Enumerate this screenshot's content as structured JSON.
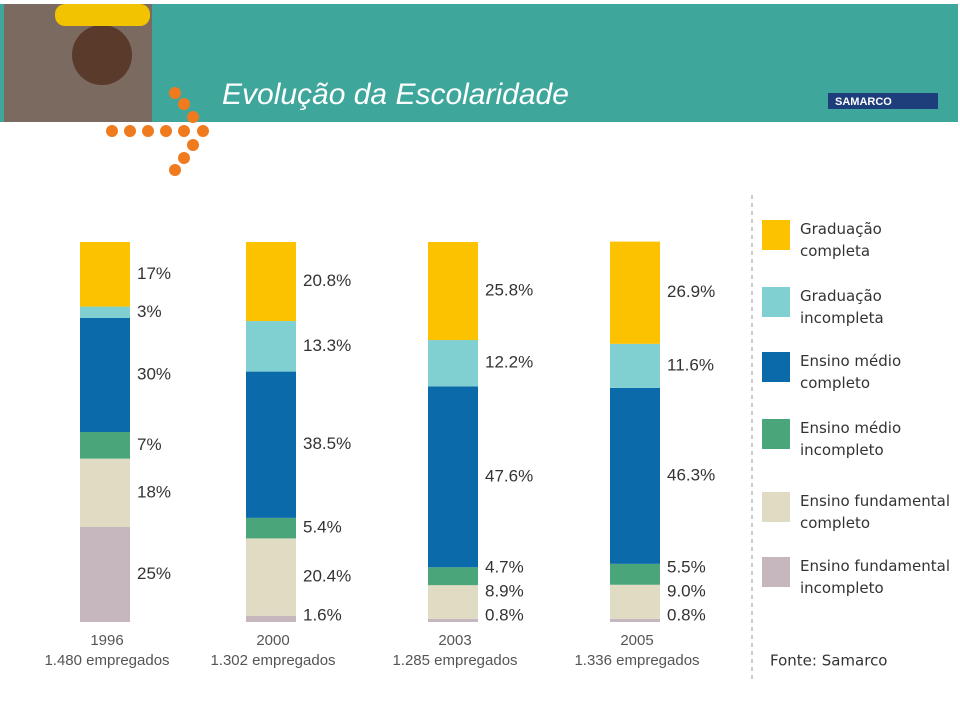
{
  "header": {
    "logo": "SAMARCO"
  },
  "chart_data": {
    "type": "stacked_bar",
    "title": "Evolução da Escolaridade",
    "source": "Fonte: Samarco",
    "categories": [
      "1996",
      "2000",
      "2003",
      "2005"
    ],
    "category_notes": [
      "1.480 empregados",
      "1.302 empregados",
      "1.285 empregados",
      "1.336 empregados"
    ],
    "series": [
      {
        "name": "Graduação completa",
        "color": "#fcc200",
        "values": [
          17,
          20.8,
          25.8,
          26.9
        ],
        "value_labels": [
          "17%",
          "20.8%",
          "25.8%",
          "26.9%"
        ]
      },
      {
        "name": "Graduação incompleta",
        "color": "#80d0d2",
        "values": [
          3,
          13.3,
          12.2,
          11.6
        ],
        "value_labels": [
          "3%",
          "13.3%",
          "12.2%",
          "11.6%"
        ]
      },
      {
        "name": "Ensino médio completo",
        "color": "#0a6aaa",
        "values": [
          30,
          38.5,
          47.6,
          46.3
        ],
        "value_labels": [
          "30%",
          "38.5%",
          "47.6%",
          "46.3%"
        ]
      },
      {
        "name": "Ensino médio incompleto",
        "color": "#4aa57a",
        "values": [
          7,
          5.4,
          4.7,
          5.5
        ],
        "value_labels": [
          "7%",
          "5.4%",
          "4.7%",
          "5.5%"
        ]
      },
      {
        "name": "Ensino fundamental completo",
        "color": "#e0dbc3",
        "values": [
          18,
          20.4,
          8.9,
          9.0
        ],
        "value_labels": [
          "18%",
          "20.4%",
          "8.9%",
          "9.0%"
        ]
      },
      {
        "name": "Ensino fundamental incompleto",
        "color": "#c6b7bf",
        "values": [
          25,
          1.6,
          0.8,
          0.8
        ],
        "value_labels": [
          "25%",
          "1.6%",
          "0.8%",
          "0.8%"
        ]
      }
    ]
  }
}
